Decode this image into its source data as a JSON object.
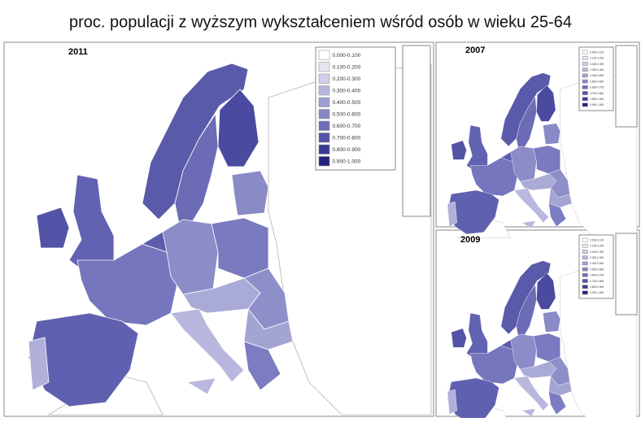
{
  "header": {
    "title": "proc. populacji z wyższym wykształceniem wśród osób w wieku 25-64"
  },
  "maps": [
    {
      "label": "2011"
    },
    {
      "label": "2007"
    },
    {
      "label": "2009"
    }
  ],
  "legend": [
    {
      "label": "0.000-0.100",
      "color": "#ffffff"
    },
    {
      "label": "0.100-0.200",
      "color": "#e6e6f3"
    },
    {
      "label": "0.200-0.300",
      "color": "#cfcfe9"
    },
    {
      "label": "0.300-0.400",
      "color": "#b7b7dd"
    },
    {
      "label": "0.400-0.500",
      "color": "#9f9fd1"
    },
    {
      "label": "0.500-0.600",
      "color": "#8787c5"
    },
    {
      "label": "0.600-0.700",
      "color": "#6e6eb8"
    },
    {
      "label": "0.700-0.800",
      "color": "#5454a8"
    },
    {
      "label": "0.800-0.900",
      "color": "#3a3a95"
    },
    {
      "label": "0.900-1.000",
      "color": "#22227e"
    }
  ]
}
